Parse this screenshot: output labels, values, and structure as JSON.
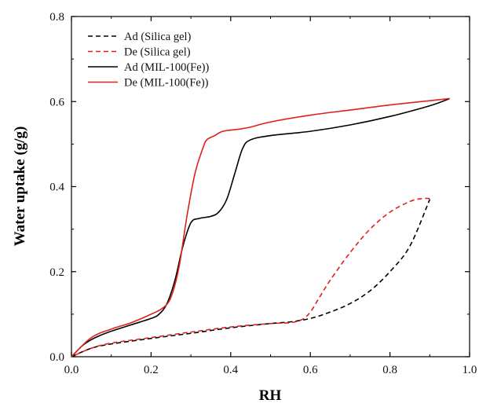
{
  "chart_data": {
    "type": "line",
    "xlabel": "RH",
    "ylabel": "Water uptake (g/g)",
    "xlim": [
      0.0,
      1.0
    ],
    "ylim": [
      0.0,
      0.8
    ],
    "x_ticks": [
      0.0,
      0.2,
      0.4,
      0.6,
      0.8,
      1.0
    ],
    "y_ticks": [
      0.0,
      0.2,
      0.4,
      0.6,
      0.8
    ],
    "x_tick_labels": [
      "0.0",
      "0.2",
      "0.4",
      "0.6",
      "0.8",
      "1.0"
    ],
    "y_tick_labels": [
      "0.0",
      "0.2",
      "0.4",
      "0.6",
      "0.8"
    ],
    "grid": false,
    "legend_position": "top-left",
    "series": [
      {
        "name": "Ad (Silica gel)",
        "color": "#000000",
        "dash": "dashed",
        "x": [
          0.0,
          0.05,
          0.1,
          0.2,
          0.3,
          0.4,
          0.5,
          0.55,
          0.6,
          0.65,
          0.7,
          0.75,
          0.8,
          0.85,
          0.9
        ],
        "y": [
          0.0,
          0.02,
          0.03,
          0.043,
          0.055,
          0.068,
          0.078,
          0.082,
          0.09,
          0.105,
          0.125,
          0.155,
          0.2,
          0.26,
          0.37
        ]
      },
      {
        "name": "De (Silica gel)",
        "color": "#e02020",
        "dash": "dashed",
        "x": [
          0.9,
          0.88,
          0.85,
          0.8,
          0.75,
          0.7,
          0.65,
          0.62,
          0.6,
          0.58,
          0.55,
          0.5,
          0.4,
          0.3,
          0.2,
          0.1,
          0.05,
          0.0
        ],
        "y": [
          0.372,
          0.372,
          0.365,
          0.34,
          0.3,
          0.245,
          0.18,
          0.135,
          0.105,
          0.088,
          0.08,
          0.078,
          0.07,
          0.058,
          0.045,
          0.032,
          0.02,
          0.0
        ]
      },
      {
        "name": "Ad (MIL-100(Fe))",
        "color": "#000000",
        "dash": "solid",
        "x": [
          0.0,
          0.03,
          0.06,
          0.1,
          0.15,
          0.2,
          0.22,
          0.24,
          0.26,
          0.28,
          0.3,
          0.32,
          0.35,
          0.37,
          0.39,
          0.41,
          0.43,
          0.45,
          0.5,
          0.6,
          0.7,
          0.8,
          0.9,
          0.95
        ],
        "y": [
          0.0,
          0.028,
          0.045,
          0.06,
          0.075,
          0.09,
          0.1,
          0.125,
          0.18,
          0.26,
          0.315,
          0.325,
          0.33,
          0.34,
          0.37,
          0.43,
          0.49,
          0.51,
          0.52,
          0.53,
          0.545,
          0.565,
          0.59,
          0.607
        ]
      },
      {
        "name": "De (MIL-100(Fe))",
        "color": "#e02020",
        "dash": "solid",
        "x": [
          0.95,
          0.9,
          0.8,
          0.7,
          0.6,
          0.5,
          0.45,
          0.42,
          0.38,
          0.36,
          0.34,
          0.33,
          0.31,
          0.29,
          0.27,
          0.25,
          0.23,
          0.2,
          0.15,
          0.1,
          0.05,
          0.0
        ],
        "y": [
          0.607,
          0.602,
          0.592,
          0.58,
          0.568,
          0.552,
          0.54,
          0.535,
          0.53,
          0.52,
          0.51,
          0.49,
          0.43,
          0.33,
          0.21,
          0.14,
          0.115,
          0.1,
          0.08,
          0.065,
          0.045,
          0.0
        ]
      }
    ]
  }
}
